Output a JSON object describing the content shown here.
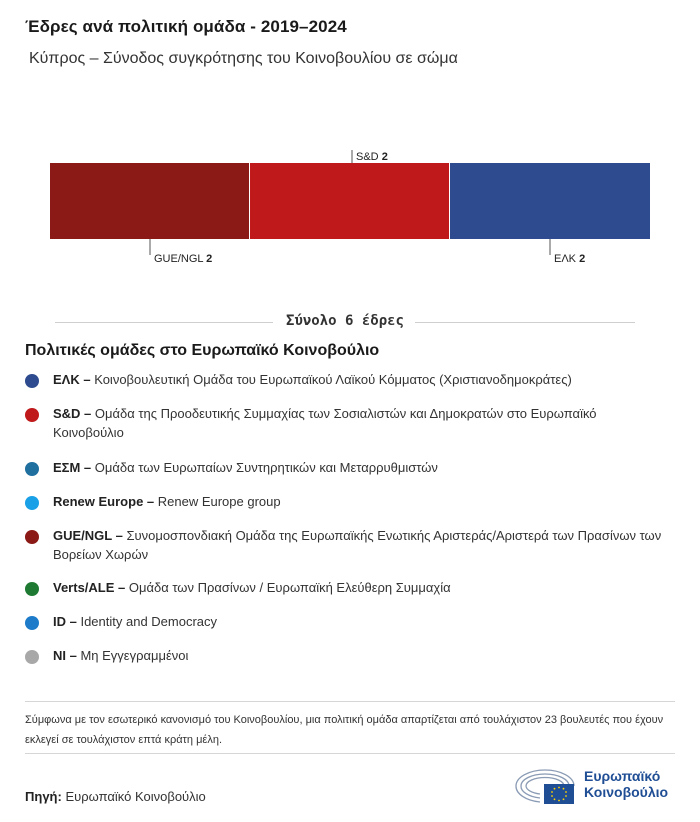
{
  "header": {
    "title": "Έδρες ανά πολιτική ομάδα - 2019–2024",
    "subtitle": "Κύπρος – Σύνοδος συγκρότησης του Κοινοβουλίου σε σώμα"
  },
  "chart_data": {
    "type": "bar",
    "orientation": "horizontal-stacked",
    "total": 6,
    "series": [
      {
        "name": "GUE/NGL",
        "value": 2,
        "color": "#8b1a16",
        "label_position": "below"
      },
      {
        "name": "S&D",
        "value": 2,
        "color": "#c0191b",
        "label_position": "above"
      },
      {
        "name": "ΕΛΚ",
        "value": 2,
        "color": "#2e4b8f",
        "label_position": "below"
      }
    ]
  },
  "total_label": "Σύνολο 6 έδρες",
  "legend": {
    "title": "Πολιτικές ομάδες στο Ευρωπαϊκό Κοινοβούλιο",
    "items": [
      {
        "abbr": "ΕΛΚ –",
        "desc": "Κοινοβουλευτική Ομάδα του Ευρωπαϊκού Λαϊκού Κόμματος (Χριστιανοδημοκράτες)",
        "color": "#2e4b8f"
      },
      {
        "abbr": "S&D –",
        "desc": "Ομάδα της Προοδευτικής Συμμαχίας των Σοσιαλιστών και Δημοκρατών στο Ευρωπαϊκό Κοινοβούλιο",
        "color": "#c0191b"
      },
      {
        "abbr": "ΕΣΜ –",
        "desc": "Ομάδα των Ευρωπαίων Συντηρητικών και Μεταρρυθμιστών",
        "color": "#1f6f9f"
      },
      {
        "abbr": "Renew Europe –",
        "desc": "Renew Europe group",
        "color": "#1aa0e6"
      },
      {
        "abbr": "GUE/NGL –",
        "desc": "Συνομοσπονδιακή Ομάδα της Ευρωπαϊκής Ενωτικής Αριστεράς/Αριστερά των Πρασίνων των Βορείων Χωρών",
        "color": "#8b1a16"
      },
      {
        "abbr": "Verts/ALE –",
        "desc": "Ομάδα των Πρασίνων / Ευρωπαϊκή Ελεύθερη Συμμαχία",
        "color": "#1e7a33"
      },
      {
        "abbr": "ID –",
        "desc": "Identity and Democracy",
        "color": "#1d7bc9"
      },
      {
        "abbr": "NI –",
        "desc": "Μη Εγγεγραμμένοι",
        "color": "#a8a8a8"
      }
    ]
  },
  "note": "Σύμφωνα με τον εσωτερικό κανονισμό του Κοινοβουλίου, μια πολιτική ομάδα απαρτίζεται από τουλάχιστον 23 βουλευτές που έχουν εκλεγεί σε τουλάχιστον επτά κράτη μέλη.",
  "source": {
    "label": "Πηγή:",
    "value": "Ευρωπαϊκό Κοινοβούλιο"
  },
  "logo": {
    "line1": "Ευρωπαϊκό",
    "line2": "Κοινοβούλιο",
    "icon": "european-parliament-logo-icon"
  }
}
